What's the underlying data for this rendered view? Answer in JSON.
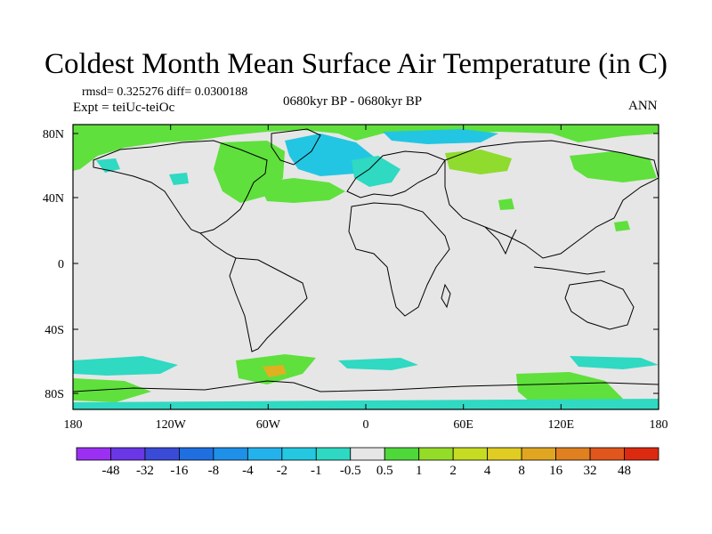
{
  "title": "Coldest Month Mean Surface Air Temperature (in C)",
  "stats": "rmsd= 0.325276 diff= 0.0300188",
  "expt": "Expt = teiUc-teiOc",
  "period": "0680kyr BP - 0680kyr BP",
  "season": "ANN",
  "lat_labels": [
    "80N",
    "40N",
    "0",
    "40S",
    "80S"
  ],
  "lon_labels": [
    "180",
    "120W",
    "60W",
    "0",
    "60E",
    "120E",
    "180"
  ],
  "colorbar": {
    "labels": [
      "-48",
      "-32",
      "-16",
      "-8",
      "-4",
      "-2",
      "-1",
      "-0.5",
      "0.5",
      "1",
      "2",
      "4",
      "8",
      "16",
      "32",
      "48"
    ],
    "colors": [
      "#9b30f2",
      "#6a36e6",
      "#3a4bd8",
      "#1f6fe0",
      "#1e90e8",
      "#23b2ec",
      "#24c8e0",
      "#2ed8c2",
      "#e6e6e6",
      "#4fd83a",
      "#94dc28",
      "#c6dc22",
      "#e0cc22",
      "#e0a622",
      "#e08020",
      "#e0561c",
      "#dc2a10"
    ]
  },
  "colors": {
    "land_bg": "#e6e6e6",
    "coast": "#000000",
    "green": "#5fe03c",
    "lime": "#8fdb2e",
    "cyan": "#22c6e2",
    "teal": "#2fd9c2",
    "orange": "#e0b020"
  }
}
